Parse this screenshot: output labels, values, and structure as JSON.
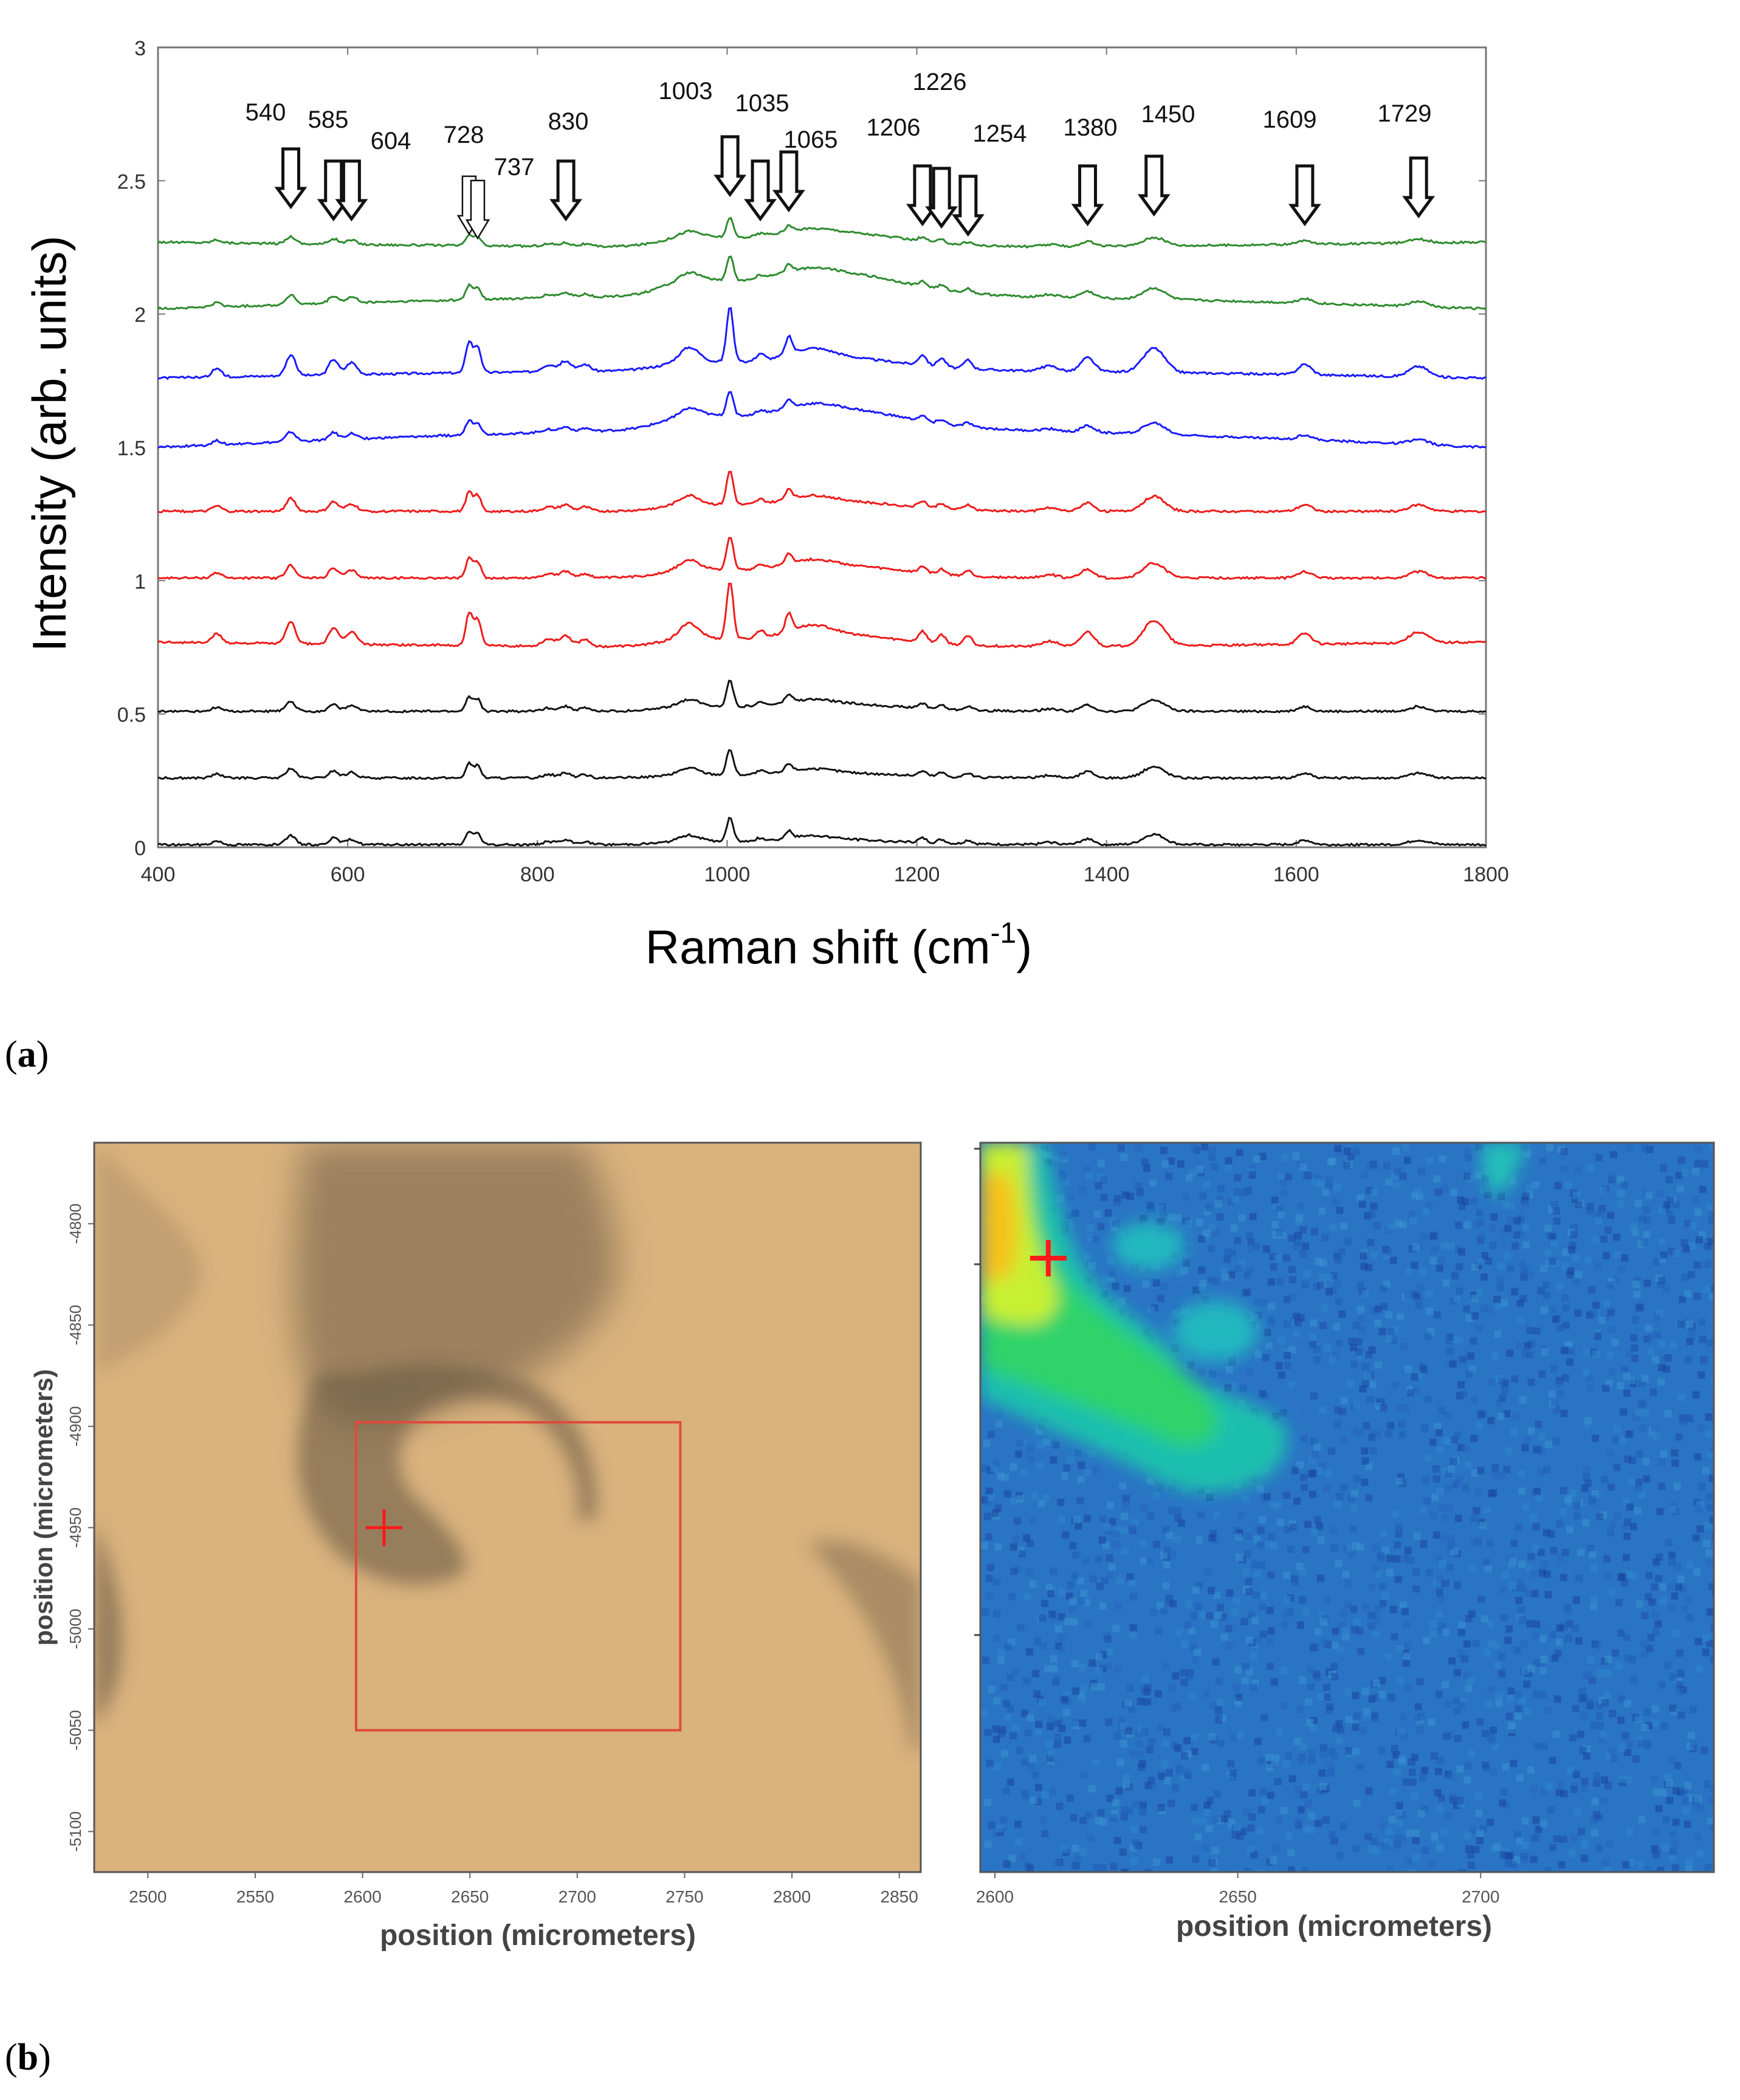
{
  "panel_labels": {
    "a_open": "(",
    "a_letter": "a",
    "a_close": ")",
    "b_open": "(",
    "b_letter": "b",
    "b_close": ")"
  },
  "colors": {
    "green": "#2e8b2e",
    "blue": "#1a1aff",
    "red": "#ee1b1b",
    "black": "#111111",
    "frame": "#777777",
    "micro_bg": "#d9b27e",
    "micro_dark": "#6a5a44",
    "box": "#e04a3a",
    "marker": "#ff1a1a"
  },
  "chart_data": [
    {
      "type": "line",
      "title": "",
      "xlabel": "Raman shift (cm",
      "xlabel_sup": "-1",
      "xlabel_close": ")",
      "ylabel": "Intensity (arb. units)",
      "xlim": [
        400,
        1800
      ],
      "ylim": [
        0,
        3
      ],
      "x_ticks": [
        "400",
        "600",
        "800",
        "1000",
        "1200",
        "1400",
        "1600",
        "1800"
      ],
      "y_ticks": [
        "0",
        "0.5",
        "1",
        "1.5",
        "2",
        "2.5",
        "3"
      ],
      "grid": false,
      "legend": "none",
      "peaks": [
        {
          "x": 540,
          "label": "540"
        },
        {
          "x": 585,
          "label": "585"
        },
        {
          "x": 604,
          "label": "604"
        },
        {
          "x": 728,
          "label": "728"
        },
        {
          "x": 737,
          "label": "737"
        },
        {
          "x": 830,
          "label": "830"
        },
        {
          "x": 1003,
          "label": "1003"
        },
        {
          "x": 1035,
          "label": "1035"
        },
        {
          "x": 1065,
          "label": "1065"
        },
        {
          "x": 1206,
          "label": "1206"
        },
        {
          "x": 1226,
          "label": "1226"
        },
        {
          "x": 1254,
          "label": "1254"
        },
        {
          "x": 1380,
          "label": "1380"
        },
        {
          "x": 1450,
          "label": "1450"
        },
        {
          "x": 1609,
          "label": "1609"
        },
        {
          "x": 1729,
          "label": "1729"
        }
      ],
      "series": [
        {
          "color": "green",
          "offset": 2.27,
          "slope": -0.02,
          "broad": 0.06,
          "scale": 0.45
        },
        {
          "color": "green",
          "offset": 2.02,
          "slope": 0.05,
          "broad": 0.09,
          "scale": 0.6
        },
        {
          "color": "blue",
          "offset": 1.76,
          "slope": 0.03,
          "broad": 0.05,
          "scale": 1.3
        },
        {
          "color": "blue",
          "offset": 1.5,
          "slope": 0.07,
          "broad": 0.08,
          "scale": 0.6
        },
        {
          "color": "red",
          "offset": 1.26,
          "slope": 0.0,
          "broad": 0.04,
          "scale": 0.8
        },
        {
          "color": "red",
          "offset": 1.01,
          "slope": 0.0,
          "broad": 0.05,
          "scale": 0.8
        },
        {
          "color": "red",
          "offset": 0.77,
          "slope": -0.02,
          "broad": 0.05,
          "scale": 1.35
        },
        {
          "color": "black",
          "offset": 0.51,
          "slope": 0.0,
          "broad": 0.03,
          "scale": 0.6
        },
        {
          "color": "black",
          "offset": 0.26,
          "slope": 0.0,
          "broad": 0.02,
          "scale": 0.6
        },
        {
          "color": "black",
          "offset": 0.01,
          "slope": 0.0,
          "broad": 0.02,
          "scale": 0.55
        }
      ]
    },
    {
      "type": "heatmap",
      "name": "optical-image",
      "xlabel": "position (micrometers)",
      "ylabel": "position (micrometers)",
      "xlim": [
        2475,
        2860
      ],
      "ylim": [
        4760,
        5120
      ],
      "x_ticks": [
        "2500",
        "2550",
        "2600",
        "2650",
        "2700",
        "2750",
        "2800",
        "2850"
      ],
      "y_ticks": [
        "-4800",
        "-4850",
        "-4900",
        "-4950",
        "-5000",
        "-5050",
        "-5100"
      ],
      "scan_area": {
        "x": [
          2597,
          2748
        ],
        "y": [
          4898,
          5050
        ]
      },
      "marker": {
        "x": 2610,
        "y": 4950
      }
    },
    {
      "type": "heatmap",
      "name": "raman-map",
      "xlabel": "position (micrometers)",
      "xlim": [
        2597,
        2748
      ],
      "x_ticks": [
        "2600",
        "2650",
        "2700"
      ],
      "marker": {
        "x": 2611,
        "y": 4950
      }
    }
  ]
}
